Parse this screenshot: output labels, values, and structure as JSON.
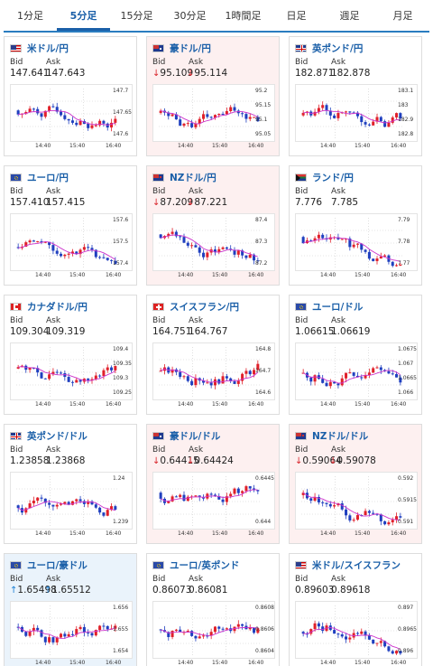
{
  "tabs": [
    {
      "label": "1分足",
      "active": false
    },
    {
      "label": "5分足",
      "active": true
    },
    {
      "label": "15分足",
      "active": false
    },
    {
      "label": "30分足",
      "active": false
    },
    {
      "label": "1時間足",
      "active": false
    },
    {
      "label": "日足",
      "active": false
    },
    {
      "label": "週足",
      "active": false
    },
    {
      "label": "月足",
      "active": false
    }
  ],
  "labels": {
    "bid": "Bid",
    "ask": "Ask"
  },
  "colors": {
    "accent": "#1a5fa8",
    "down_bg": "#fdf0f0",
    "up_bg": "#eaf3fb",
    "candle_up": "#e0202a",
    "candle_down": "#1f3fbf",
    "ma": "#cc33cc"
  },
  "cards": [
    {
      "name": "米ドル/円",
      "flag": "us",
      "state": "none",
      "bid": "147.641",
      "ask": "147.643",
      "arrow": "",
      "yticks": [
        "147.7",
        "147.65",
        "147.6"
      ],
      "xticks": [
        "14:40",
        "15:40",
        "16:40"
      ]
    },
    {
      "name": "豪ドル/円",
      "flag": "au",
      "state": "down",
      "bid": "95.109",
      "ask": "95.114",
      "arrow": "↓",
      "yticks": [
        "95.2",
        "95.15",
        "95.1",
        "95.05"
      ],
      "xticks": [
        "14:40",
        "15:40",
        "16:40"
      ]
    },
    {
      "name": "英ポンド/円",
      "flag": "gb",
      "state": "none",
      "bid": "182.871",
      "ask": "182.878",
      "arrow": "",
      "yticks": [
        "183.1",
        "183",
        "182.9",
        "182.8"
      ],
      "xticks": [
        "14:40",
        "15:40",
        "16:40"
      ]
    },
    {
      "name": "ユーロ/円",
      "flag": "eu",
      "state": "none",
      "bid": "157.410",
      "ask": "157.415",
      "arrow": "",
      "yticks": [
        "157.6",
        "157.5",
        "157.4"
      ],
      "xticks": [
        "14:40",
        "15:40",
        "16:40"
      ]
    },
    {
      "name": "NZドル/円",
      "flag": "nz",
      "state": "down",
      "bid": "87.209",
      "ask": "87.221",
      "arrow": "↓",
      "yticks": [
        "87.4",
        "87.3",
        "87.2"
      ],
      "xticks": [
        "14:40",
        "15:40",
        "16:40"
      ]
    },
    {
      "name": "ランド/円",
      "flag": "za",
      "state": "none",
      "bid": "7.776",
      "ask": "7.785",
      "arrow": "",
      "yticks": [
        "7.79",
        "7.78",
        "7.77"
      ],
      "xticks": [
        "14:40",
        "15:40",
        "16:40"
      ]
    },
    {
      "name": "カナダドル/円",
      "flag": "ca",
      "state": "none",
      "bid": "109.304",
      "ask": "109.319",
      "arrow": "",
      "yticks": [
        "109.4",
        "109.35",
        "109.3",
        "109.25"
      ],
      "xticks": [
        "14:40",
        "15:40",
        "16:40"
      ]
    },
    {
      "name": "スイスフラン/円",
      "flag": "ch",
      "state": "none",
      "bid": "164.751",
      "ask": "164.767",
      "arrow": "",
      "yticks": [
        "164.8",
        "164.7",
        "164.6"
      ],
      "xticks": [
        "14:40",
        "15:40",
        "16:40"
      ]
    },
    {
      "name": "ユーロ/ドル",
      "flag": "eu",
      "state": "none",
      "bid": "1.06615",
      "ask": "1.06619",
      "arrow": "",
      "yticks": [
        "1.0675",
        "1.067",
        "1.0665",
        "1.066"
      ],
      "xticks": [
        "14:40",
        "15:40",
        "16:40"
      ]
    },
    {
      "name": "英ポンド/ドル",
      "flag": "gb",
      "state": "none",
      "bid": "1.23858",
      "ask": "1.23868",
      "arrow": "",
      "yticks": [
        "1.24",
        "1.239"
      ],
      "xticks": [
        "14:40",
        "15:40",
        "16:40"
      ]
    },
    {
      "name": "豪ドル/ドル",
      "flag": "au",
      "state": "down",
      "bid": "0.64415",
      "ask": "0.64424",
      "arrow": "↓",
      "yticks": [
        "0.6445",
        "0.644"
      ],
      "xticks": [
        "14:40",
        "15:40",
        "16:40"
      ]
    },
    {
      "name": "NZドル/ドル",
      "flag": "nz",
      "state": "down",
      "bid": "0.59064",
      "ask": "0.59078",
      "arrow": "↓",
      "yticks": [
        "0.592",
        "0.5915",
        "0.591"
      ],
      "xticks": [
        "14:40",
        "15:40",
        "16:40"
      ]
    },
    {
      "name": "ユーロ/豪ドル",
      "flag": "eu",
      "state": "up",
      "bid": "1.65498",
      "ask": "1.65512",
      "arrow": "↑",
      "yticks": [
        "1.656",
        "1.655",
        "1.654"
      ],
      "xticks": [
        "14:40",
        "15:40",
        "16:40"
      ]
    },
    {
      "name": "ユーロ/英ポンド",
      "flag": "eu",
      "state": "none",
      "bid": "0.86073",
      "ask": "0.86081",
      "arrow": "",
      "yticks": [
        "0.8608",
        "0.8606",
        "0.8604"
      ],
      "xticks": [
        "14:40",
        "15:40",
        "16:40"
      ]
    },
    {
      "name": "米ドル/スイスフラン",
      "flag": "us",
      "state": "none",
      "bid": "0.89603",
      "ask": "0.89618",
      "arrow": "",
      "yticks": [
        "0.897",
        "0.8965",
        "0.896"
      ],
      "xticks": [
        "14:40",
        "15:40",
        "16:40"
      ]
    }
  ]
}
